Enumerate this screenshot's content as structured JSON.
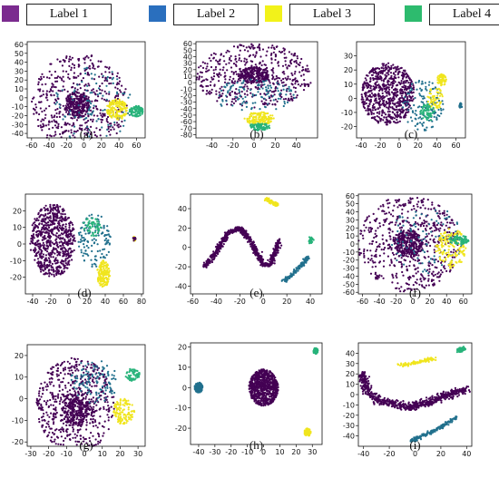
{
  "legend": {
    "items": [
      {
        "label": "Label 1",
        "color": "#7b2b8f"
      },
      {
        "label": "Label 2",
        "color": "#2a6fbe"
      },
      {
        "label": "Label 3",
        "color": "#f2f21a"
      },
      {
        "label": "Label 4",
        "color": "#2dbb6e"
      }
    ]
  },
  "colors": {
    "c1": "#440154",
    "c2": "#21708d",
    "c3": "#f0e51e",
    "c4": "#27b37a"
  },
  "chart_data": [
    {
      "type": "scatter",
      "caption": "(a)",
      "xlim": [
        -65,
        70
      ],
      "ylim": [
        -45,
        63
      ],
      "xticks": [
        -60,
        -40,
        -20,
        0,
        20,
        40,
        60
      ],
      "yticks": [
        -40,
        -30,
        -20,
        -10,
        0,
        10,
        20,
        30,
        40,
        50,
        60
      ],
      "clusters": [
        {
          "cls": "c1",
          "shape": "disk",
          "cx": -5,
          "cy": -5,
          "r": 55,
          "n": 520
        },
        {
          "cls": "c1",
          "shape": "disk",
          "cx": -8,
          "cy": -8,
          "r": 15,
          "n": 260
        },
        {
          "cls": "c2",
          "shape": "disk",
          "cx": 10,
          "cy": -10,
          "r": 45,
          "n": 110
        },
        {
          "cls": "c3",
          "shape": "ellipse",
          "cx": 38,
          "cy": -13,
          "rx": 12,
          "ry": 12,
          "n": 150
        },
        {
          "cls": "c4",
          "shape": "ellipse",
          "cx": 60,
          "cy": -15,
          "rx": 8,
          "ry": 6,
          "n": 80
        }
      ]
    },
    {
      "type": "scatter",
      "caption": "(b)",
      "xlim": [
        -55,
        60
      ],
      "ylim": [
        -85,
        63
      ],
      "xticks": [
        -40,
        -20,
        0,
        20,
        40
      ],
      "yticks": [
        -80,
        -70,
        -60,
        -50,
        -40,
        -30,
        -20,
        -10,
        0,
        10,
        20,
        30,
        40,
        50,
        60
      ],
      "clusters": [
        {
          "cls": "c1",
          "shape": "ellipse",
          "cx": 0,
          "cy": 10,
          "rx": 55,
          "ry": 50,
          "n": 480
        },
        {
          "cls": "c1",
          "shape": "ellipse",
          "cx": 0,
          "cy": 12,
          "rx": 15,
          "ry": 12,
          "n": 240
        },
        {
          "cls": "c2",
          "shape": "ellipse",
          "cx": 0,
          "cy": -20,
          "rx": 40,
          "ry": 25,
          "n": 110
        },
        {
          "cls": "c3",
          "shape": "ellipse",
          "cx": 5,
          "cy": -55,
          "rx": 14,
          "ry": 10,
          "n": 150
        },
        {
          "cls": "c4",
          "shape": "ellipse",
          "cx": 5,
          "cy": -68,
          "rx": 10,
          "ry": 6,
          "n": 80
        }
      ]
    },
    {
      "type": "scatter",
      "caption": "(c)",
      "xlim": [
        -45,
        70
      ],
      "ylim": [
        -28,
        40
      ],
      "xticks": [
        -40,
        -20,
        0,
        20,
        40,
        60
      ],
      "yticks": [
        -20,
        -10,
        0,
        10,
        20,
        30
      ],
      "clusters": [
        {
          "cls": "c1",
          "shape": "ellipse",
          "cx": -12,
          "cy": 3,
          "rx": 28,
          "ry": 22,
          "n": 700
        },
        {
          "cls": "c2",
          "shape": "ellipse",
          "cx": 25,
          "cy": -5,
          "rx": 22,
          "ry": 18,
          "n": 130
        },
        {
          "cls": "c3",
          "shape": "ellipse",
          "cx": 45,
          "cy": 13,
          "rx": 5,
          "ry": 4,
          "n": 60
        },
        {
          "cls": "c3",
          "shape": "ellipse",
          "cx": 38,
          "cy": 0,
          "rx": 8,
          "ry": 8,
          "n": 60
        },
        {
          "cls": "c4",
          "shape": "ellipse",
          "cx": 30,
          "cy": -10,
          "rx": 8,
          "ry": 6,
          "n": 60
        },
        {
          "cls": "c2",
          "shape": "ellipse",
          "cx": 65,
          "cy": -5,
          "rx": 1.5,
          "ry": 2,
          "n": 20
        }
      ]
    },
    {
      "type": "scatter",
      "caption": "(d)",
      "xlim": [
        -48,
        82
      ],
      "ylim": [
        -30,
        30
      ],
      "xticks": [
        -40,
        -20,
        0,
        20,
        40,
        60,
        80
      ],
      "yticks": [
        -20,
        -10,
        0,
        10,
        20
      ],
      "clusters": [
        {
          "cls": "c1",
          "shape": "ellipse",
          "cx": -18,
          "cy": 2,
          "rx": 25,
          "ry": 22,
          "n": 700
        },
        {
          "cls": "c2",
          "shape": "ellipse",
          "cx": 28,
          "cy": 2,
          "rx": 18,
          "ry": 16,
          "n": 130
        },
        {
          "cls": "c3",
          "shape": "ellipse",
          "cx": 38,
          "cy": -18,
          "rx": 7,
          "ry": 8,
          "n": 150
        },
        {
          "cls": "c4",
          "shape": "ellipse",
          "cx": 25,
          "cy": 10,
          "rx": 10,
          "ry": 6,
          "n": 50
        },
        {
          "cls": "c3",
          "shape": "ellipse",
          "cx": 72,
          "cy": 3,
          "rx": 1.5,
          "ry": 1.5,
          "n": 15
        },
        {
          "cls": "c1",
          "shape": "ellipse",
          "cx": 72,
          "cy": 3,
          "rx": 1.5,
          "ry": 1.2,
          "n": 15
        }
      ]
    },
    {
      "type": "scatter",
      "caption": "(e)",
      "xlim": [
        -62,
        50
      ],
      "ylim": [
        -48,
        55
      ],
      "xticks": [
        -60,
        -40,
        -20,
        0,
        20,
        40
      ],
      "yticks": [
        -40,
        -20,
        0,
        20,
        40
      ],
      "clusters": [
        {
          "cls": "c1",
          "shape": "path",
          "pts": [
            [
              -50,
              -20
            ],
            [
              -40,
              -5
            ],
            [
              -30,
              15
            ],
            [
              -20,
              20
            ],
            [
              -10,
              5
            ],
            [
              0,
              -18
            ],
            [
              6,
              -18
            ],
            [
              10,
              -5
            ],
            [
              13,
              8
            ]
          ],
          "w": 1.8,
          "n": 700
        },
        {
          "cls": "c3",
          "shape": "path",
          "pts": [
            [
              2,
              50
            ],
            [
              8,
              46
            ],
            [
              12,
              44
            ]
          ],
          "w": 1.3,
          "n": 80
        },
        {
          "cls": "c2",
          "shape": "path",
          "pts": [
            [
              18,
              -35
            ],
            [
              30,
              -22
            ],
            [
              38,
              -10
            ]
          ],
          "w": 1.5,
          "n": 150
        },
        {
          "cls": "c4",
          "shape": "path",
          "pts": [
            [
              40,
              5
            ],
            [
              41,
              10
            ]
          ],
          "w": 1.2,
          "n": 40
        }
      ]
    },
    {
      "type": "scatter",
      "caption": "(f)",
      "xlim": [
        -65,
        70
      ],
      "ylim": [
        -62,
        62
      ],
      "xticks": [
        -60,
        -40,
        -20,
        0,
        20,
        40,
        60
      ],
      "yticks": [
        -60,
        -50,
        -40,
        -30,
        -20,
        -10,
        0,
        10,
        20,
        30,
        40,
        50,
        60
      ],
      "clusters": [
        {
          "cls": "c1",
          "shape": "disk",
          "cx": -5,
          "cy": 0,
          "r": 60,
          "n": 560
        },
        {
          "cls": "c1",
          "shape": "disk",
          "cx": -5,
          "cy": 0,
          "r": 17,
          "n": 300
        },
        {
          "cls": "c2",
          "shape": "disk",
          "cx": 15,
          "cy": 5,
          "r": 45,
          "n": 90
        },
        {
          "cls": "c3",
          "shape": "ellipse",
          "cx": 45,
          "cy": -5,
          "rx": 18,
          "ry": 25,
          "n": 150
        },
        {
          "cls": "c4",
          "shape": "ellipse",
          "cx": 55,
          "cy": 5,
          "rx": 12,
          "ry": 6,
          "n": 80
        }
      ]
    },
    {
      "type": "scatter",
      "caption": "(g)",
      "xlim": [
        -32,
        34
      ],
      "ylim": [
        -22,
        25
      ],
      "xticks": [
        -30,
        -20,
        -10,
        0,
        10,
        20,
        30
      ],
      "yticks": [
        -20,
        -10,
        0,
        10,
        20
      ],
      "clusters": [
        {
          "cls": "c1",
          "shape": "disk",
          "cx": -5,
          "cy": -3,
          "r": 22,
          "n": 600
        },
        {
          "cls": "c1",
          "shape": "disk",
          "cx": -5,
          "cy": -5,
          "r": 8,
          "n": 250
        },
        {
          "cls": "c2",
          "shape": "ellipse",
          "cx": 5,
          "cy": 8,
          "rx": 14,
          "ry": 10,
          "n": 110
        },
        {
          "cls": "c3",
          "shape": "ellipse",
          "cx": 22,
          "cy": -6,
          "rx": 6,
          "ry": 6,
          "n": 120
        },
        {
          "cls": "c4",
          "shape": "ellipse",
          "cx": 27,
          "cy": 11,
          "rx": 4,
          "ry": 3,
          "n": 60
        }
      ]
    },
    {
      "type": "scatter",
      "caption": "(h)",
      "xlim": [
        -45,
        36
      ],
      "ylim": [
        -28,
        22
      ],
      "xticks": [
        -40,
        -30,
        -20,
        -10,
        0,
        10,
        20,
        30
      ],
      "yticks": [
        -20,
        -10,
        0,
        10,
        20
      ],
      "clusters": [
        {
          "cls": "c1",
          "shape": "disk",
          "cx": 0,
          "cy": 0,
          "r": 9,
          "n": 750
        },
        {
          "cls": "c2",
          "shape": "disk",
          "cx": -40,
          "cy": 0,
          "r": 2.5,
          "n": 150
        },
        {
          "cls": "c3",
          "shape": "disk",
          "cx": 27,
          "cy": -22,
          "r": 2,
          "n": 100
        },
        {
          "cls": "c4",
          "shape": "disk",
          "cx": 32,
          "cy": 18,
          "r": 1.5,
          "n": 60
        }
      ]
    },
    {
      "type": "scatter",
      "caption": "(i)",
      "xlim": [
        -44,
        44
      ],
      "ylim": [
        -50,
        50
      ],
      "xticks": [
        -40,
        -20,
        0,
        20,
        40
      ],
      "yticks": [
        -40,
        -30,
        -20,
        -10,
        0,
        10,
        20,
        30,
        40
      ],
      "clusters": [
        {
          "cls": "c1",
          "shape": "path",
          "pts": [
            [
              -40,
              20
            ],
            [
              -38,
              5
            ],
            [
              -30,
              -5
            ],
            [
              -20,
              -8
            ],
            [
              -5,
              -12
            ],
            [
              10,
              -8
            ],
            [
              25,
              0
            ],
            [
              40,
              5
            ]
          ],
          "w": 3,
          "n": 650
        },
        {
          "cls": "c3",
          "shape": "path",
          "pts": [
            [
              -12,
              28
            ],
            [
              5,
              32
            ],
            [
              15,
              35
            ]
          ],
          "w": 1.5,
          "n": 100
        },
        {
          "cls": "c2",
          "shape": "path",
          "pts": [
            [
              -3,
              -45
            ],
            [
              15,
              -35
            ],
            [
              32,
              -22
            ]
          ],
          "w": 1.5,
          "n": 160
        },
        {
          "cls": "c4",
          "shape": "path",
          "pts": [
            [
              33,
              43
            ],
            [
              38,
              44
            ]
          ],
          "w": 1.5,
          "n": 60
        }
      ]
    }
  ]
}
